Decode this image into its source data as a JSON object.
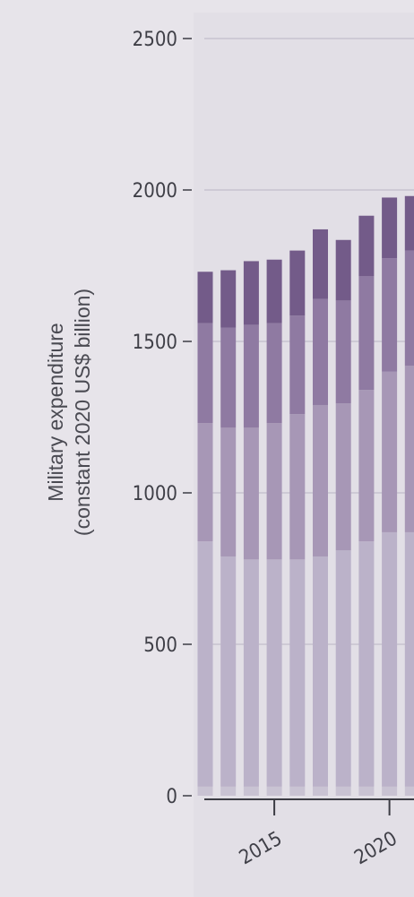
{
  "chart_data": {
    "type": "bar",
    "stacked": true,
    "ylabel_lines": [
      "Military expenditure",
      "(constant 2020 US$ billion)"
    ],
    "ylim": [
      0,
      2500
    ],
    "yticks": [
      0,
      500,
      1000,
      1500,
      2000,
      2500
    ],
    "grid": true,
    "x_tick_labels": [
      {
        "label": "2015",
        "category": 2015
      },
      {
        "label": "2020",
        "category": 2020
      }
    ],
    "categories": [
      2012,
      2013,
      2014,
      2015,
      2016,
      2017,
      2018,
      2019,
      2020,
      2021
    ],
    "series": [
      {
        "values": [
          30,
          30,
          30,
          30,
          30,
          30,
          30,
          30,
          30,
          30
        ]
      },
      {
        "values": [
          810,
          760,
          750,
          750,
          750,
          760,
          780,
          810,
          840,
          840
        ]
      },
      {
        "values": [
          390,
          425,
          435,
          450,
          480,
          500,
          485,
          500,
          530,
          550
        ]
      },
      {
        "values": [
          330,
          330,
          340,
          330,
          325,
          350,
          340,
          375,
          375,
          380
        ]
      },
      {
        "values": [
          170,
          190,
          210,
          210,
          215,
          230,
          200,
          200,
          200,
          180
        ]
      }
    ]
  },
  "colors": {
    "background": "#e7e4ea",
    "plot_background": "#e2dfe6",
    "gridline": "#c8c3cf",
    "axis": "#3c3c44",
    "series": [
      "#c9c3d3",
      "#bbb2c9",
      "#a797b6",
      "#8f7aa2",
      "#735b89"
    ]
  }
}
